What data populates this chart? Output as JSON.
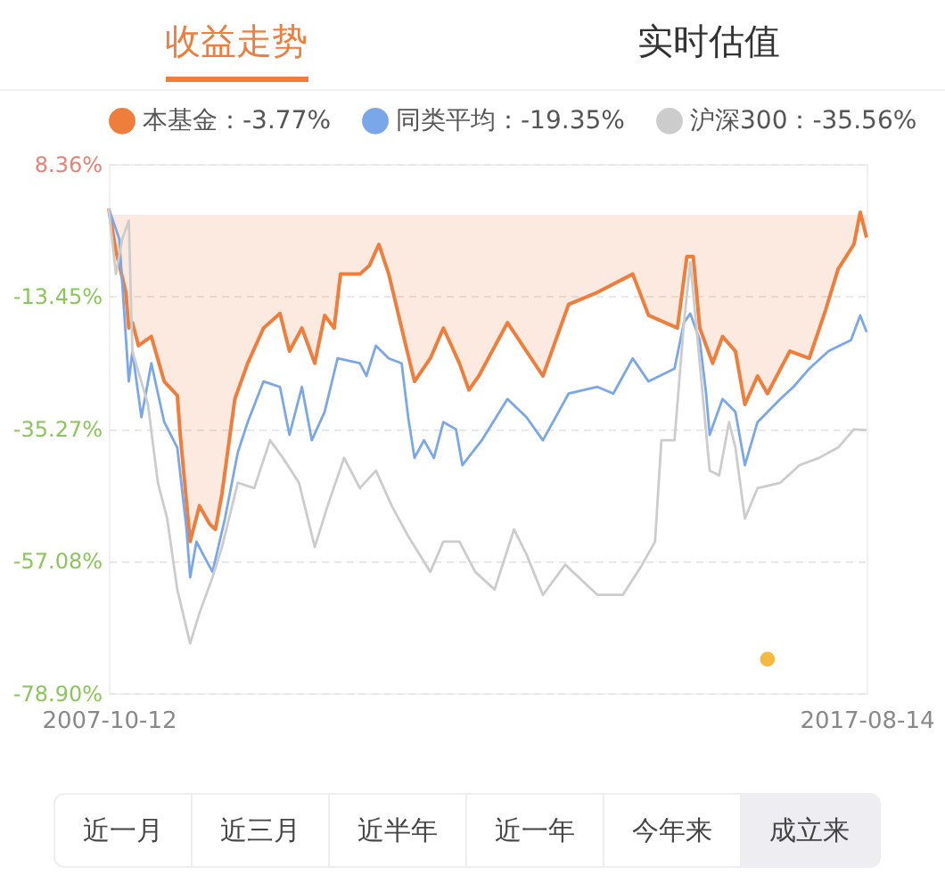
{
  "chart_data": {
    "type": "line",
    "annotations": [
      "收益走势",
      "实时估值",
      "近一月",
      "近三月",
      "近半年",
      "近一年",
      "今年来",
      "成立来"
    ],
    "ylim": [
      -78.9,
      8.36
    ],
    "yticks": [
      {
        "value": 8.36,
        "label": "8.36%"
      },
      {
        "value": -13.45,
        "label": "-13.45%"
      },
      {
        "value": -35.27,
        "label": "-35.27%"
      },
      {
        "value": -57.08,
        "label": "-57.08%"
      },
      {
        "value": -78.9,
        "label": "-78.90%"
      }
    ],
    "xlim": [
      "2007-10-12",
      "2017-08-14"
    ],
    "xticks": [
      "2007-10-12",
      "2017-08-14"
    ],
    "grid": "y",
    "legend": "top left",
    "series": [
      {
        "name": "本基金：-3.77%",
        "type": "area",
        "color": "#ef7d3c",
        "x": [
          "2007-10-12",
          "2007-11-15",
          "2008-01-01",
          "2008-01-15",
          "2008-02-01",
          "2008-03-01",
          "2008-05-01",
          "2008-07-01",
          "2008-09-01",
          "2008-09-15",
          "2008-11-01",
          "2008-12-15",
          "2009-02-01",
          "2009-03-01",
          "2009-04-01",
          "2009-06-01",
          "2009-08-01",
          "2009-10-15",
          "2010-01-01",
          "2010-02-15",
          "2010-04-15",
          "2010-06-15",
          "2010-08-01",
          "2010-09-15",
          "2010-10-15",
          "2011-01-15",
          "2011-03-01",
          "2011-04-15",
          "2011-06-01",
          "2011-08-01",
          "2011-10-01",
          "2011-12-15",
          "2012-02-15",
          "2012-05-01",
          "2012-06-15",
          "2012-08-01",
          "2012-12-15",
          "2013-06-01",
          "2013-10-01",
          "2014-02-15",
          "2014-08-01",
          "2014-10-15",
          "2015-03-01",
          "2015-04-15",
          "2015-05-15",
          "2015-06-15",
          "2015-08-15",
          "2015-10-01",
          "2015-12-01",
          "2016-01-15",
          "2016-03-15",
          "2016-05-01",
          "2016-08-15",
          "2016-11-15",
          "2017-02-01",
          "2017-04-01",
          "2017-06-15",
          "2017-07-15",
          "2017-08-14"
        ],
        "values": [
          1.0,
          -6.0,
          -12.8,
          -18.7,
          -17.8,
          -21.6,
          -20.1,
          -27.5,
          -29.8,
          -36.3,
          -53.9,
          -48.0,
          -51.0,
          -51.9,
          -46.0,
          -30.4,
          -24.5,
          -18.7,
          -16.3,
          -22.5,
          -18.7,
          -24.5,
          -16.6,
          -18.7,
          -9.8,
          -9.8,
          -8.4,
          -4.9,
          -9.8,
          -18.7,
          -27.5,
          -23.7,
          -18.7,
          -24.5,
          -28.9,
          -26.6,
          -17.8,
          -26.6,
          -14.8,
          -12.8,
          -9.8,
          -16.6,
          -18.7,
          -6.9,
          -6.9,
          -18.7,
          -24.5,
          -20.1,
          -22.5,
          -31.3,
          -26.6,
          -29.5,
          -22.5,
          -23.7,
          -15.7,
          -9.0,
          -4.9,
          0.4,
          -3.77
        ]
      },
      {
        "name": "同类平均：-19.35%",
        "color": "#7aa7ea",
        "x": [
          "2007-10-12",
          "2007-12-01",
          "2008-01-15",
          "2008-02-01",
          "2008-03-15",
          "2008-05-01",
          "2008-07-01",
          "2008-09-01",
          "2008-10-15",
          "2008-11-01",
          "2008-12-01",
          "2009-01-01",
          "2009-02-15",
          "2009-04-15",
          "2009-06-15",
          "2009-08-01",
          "2009-10-15",
          "2010-01-01",
          "2010-02-15",
          "2010-04-15",
          "2010-06-01",
          "2010-08-01",
          "2010-10-01",
          "2011-01-15",
          "2011-02-15",
          "2011-04-01",
          "2011-06-01",
          "2011-08-01",
          "2011-09-01",
          "2011-10-01",
          "2011-11-15",
          "2012-01-01",
          "2012-02-15",
          "2012-04-15",
          "2012-05-15",
          "2012-08-15",
          "2012-12-15",
          "2013-03-15",
          "2013-06-01",
          "2013-10-01",
          "2014-02-15",
          "2014-05-01",
          "2014-08-01",
          "2014-10-15",
          "2015-02-15",
          "2015-04-01",
          "2015-05-01",
          "2015-06-15",
          "2015-07-15",
          "2015-08-01",
          "2015-10-01",
          "2015-12-01",
          "2016-01-15",
          "2016-03-15",
          "2016-07-01",
          "2016-09-01",
          "2016-11-15",
          "2017-02-15",
          "2017-06-01",
          "2017-07-15",
          "2017-08-14"
        ],
        "values": [
          1.0,
          -4.0,
          -27.5,
          -22.5,
          -33.4,
          -24.5,
          -34.2,
          -38.4,
          -51.9,
          -59.8,
          -53.9,
          -56.0,
          -58.9,
          -50.1,
          -39.2,
          -34.2,
          -27.5,
          -28.4,
          -36.3,
          -28.4,
          -37.2,
          -32.5,
          -23.7,
          -24.5,
          -26.6,
          -21.6,
          -23.7,
          -24.5,
          -33.4,
          -40.1,
          -37.2,
          -40.1,
          -34.2,
          -35.4,
          -41.3,
          -37.2,
          -30.4,
          -33.4,
          -37.2,
          -29.5,
          -28.4,
          -29.5,
          -23.7,
          -27.5,
          -25.4,
          -17.8,
          -16.3,
          -20.7,
          -29.5,
          -36.3,
          -30.4,
          -32.5,
          -41.3,
          -34.2,
          -30.4,
          -28.4,
          -25.4,
          -22.5,
          -20.7,
          -16.6,
          -19.35
        ]
      },
      {
        "name": "沪深300：-35.56%",
        "color": "#cccccc",
        "x": [
          "2007-10-12",
          "2007-11-15",
          "2007-12-15",
          "2008-01-15",
          "2008-02-01",
          "2008-04-15",
          "2008-06-01",
          "2008-07-15",
          "2008-09-01",
          "2008-11-01",
          "2008-12-15",
          "2009-02-15",
          "2009-04-01",
          "2009-06-15",
          "2009-09-01",
          "2009-11-15",
          "2010-01-15",
          "2010-04-01",
          "2010-06-15",
          "2010-08-15",
          "2010-11-01",
          "2011-01-15",
          "2011-04-01",
          "2011-06-15",
          "2011-09-01",
          "2011-12-15",
          "2012-02-15",
          "2012-05-01",
          "2012-07-15",
          "2012-10-15",
          "2013-01-15",
          "2013-03-15",
          "2013-06-01",
          "2013-09-15",
          "2013-12-15",
          "2014-02-15",
          "2014-06-15",
          "2014-09-15",
          "2014-11-15",
          "2014-12-15",
          "2015-02-15",
          "2015-04-01",
          "2015-05-01",
          "2015-06-15",
          "2015-08-01",
          "2015-09-15",
          "2015-11-01",
          "2015-12-01",
          "2016-01-15",
          "2016-03-15",
          "2016-07-01",
          "2016-10-01",
          "2017-01-01",
          "2017-04-01",
          "2017-06-15",
          "2017-08-14"
        ],
        "values": [
          1.0,
          -9.8,
          -4.0,
          -1.0,
          -22.5,
          -31.3,
          -44.2,
          -50.1,
          -61.8,
          -70.7,
          -65.7,
          -59.8,
          -54.8,
          -44.2,
          -45.1,
          -37.2,
          -40.1,
          -44.2,
          -54.8,
          -48.0,
          -40.1,
          -45.1,
          -42.2,
          -48.0,
          -53.0,
          -58.9,
          -53.9,
          -53.9,
          -58.9,
          -61.8,
          -51.9,
          -56.0,
          -62.7,
          -57.7,
          -60.7,
          -62.7,
          -62.7,
          -57.7,
          -53.9,
          -37.2,
          -37.2,
          -17.8,
          -7.8,
          -24.5,
          -42.2,
          -43.0,
          -34.2,
          -38.4,
          -50.1,
          -45.1,
          -44.2,
          -41.3,
          -40.1,
          -38.4,
          -35.4,
          -35.56
        ]
      },
      {
        "type": "scatter",
        "marker": "circle",
        "color": "#f5b942",
        "x": [
          "2016-05-01"
        ],
        "values": [
          -73.3
        ]
      }
    ]
  }
}
